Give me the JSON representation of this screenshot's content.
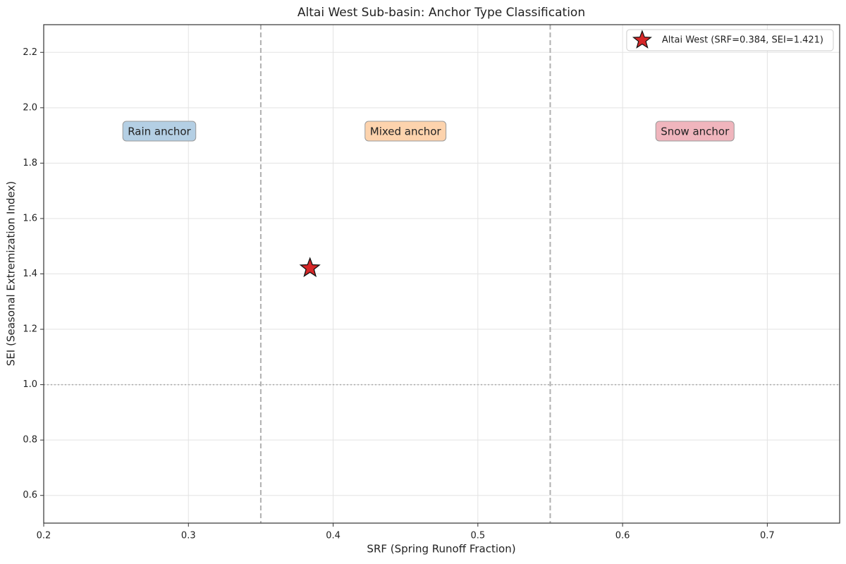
{
  "chart_data": {
    "type": "scatter",
    "title": "Altai West Sub-basin: Anchor Type Classification",
    "x_label": "SRF (Spring Runoff Fraction)",
    "y_label": "SEI (Seasonal Extremization Index)",
    "series": [
      {
        "name": "Altai West (SRF=0.384, SEI=1.421)",
        "color": "#d62728",
        "marker": "star",
        "x": [
          0.384
        ],
        "y": [
          1.421
        ]
      }
    ],
    "xlim": [
      0.2,
      0.75
    ],
    "xticks": [
      0.2,
      0.3,
      0.4,
      0.5,
      0.6,
      0.7
    ],
    "ylim": [
      0.5,
      2.3
    ],
    "yticks": [
      0.6,
      0.8,
      {
        "value": 1,
        "label": "1.0"
      },
      1.2,
      1.4,
      1.6,
      1.8,
      {
        "value": 2,
        "label": "2.0"
      },
      2.2
    ],
    "grid": true,
    "thresholds": [
      0.35,
      0.55
    ],
    "reference_y": 1,
    "regions": [
      {
        "label": "Rain anchor",
        "color": "#b4cfe4"
      },
      {
        "label": "Mixed anchor",
        "color": "#fdd3ad"
      },
      {
        "label": "Snow anchor",
        "color": "#f0b5bd"
      }
    ],
    "legend": "upper right"
  }
}
